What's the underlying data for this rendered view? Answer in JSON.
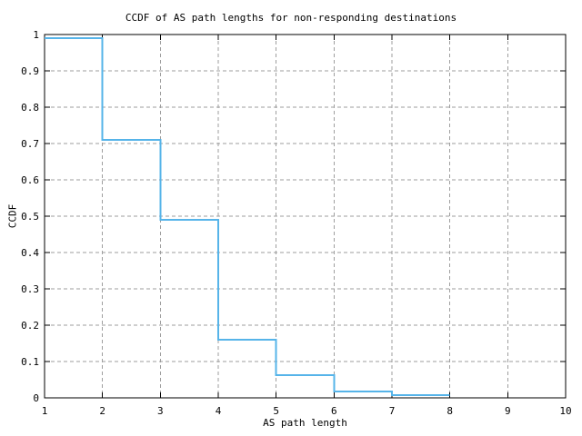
{
  "chart_data": {
    "type": "line",
    "style": "step-ccdf-staircase",
    "title": "CCDF of AS path lengths for non-responding destinations",
    "xlabel": "AS path length",
    "ylabel": "CCDF",
    "xlim": [
      1,
      10
    ],
    "ylim": [
      0,
      1
    ],
    "xticks": [
      1,
      2,
      3,
      4,
      5,
      6,
      7,
      8,
      9,
      10
    ],
    "xtick_labels": [
      "1",
      "2",
      "3",
      "4",
      "5",
      "6",
      "7",
      "8",
      "9",
      "10"
    ],
    "yticks": [
      0,
      0.1,
      0.2,
      0.3,
      0.4,
      0.5,
      0.6,
      0.7,
      0.8,
      0.9,
      1
    ],
    "ytick_labels": [
      "0",
      "0.1",
      "0.2",
      "0.3",
      "0.4",
      "0.5",
      "0.6",
      "0.7",
      "0.8",
      "0.9",
      "1"
    ],
    "grid": true,
    "legend": "none",
    "line_color": "#56b4e9",
    "series": [
      {
        "name": "CCDF of AS path length",
        "steps": [
          {
            "x_start": 1,
            "x_end": 2,
            "y": 0.99
          },
          {
            "x_start": 2,
            "x_end": 3,
            "y": 0.71
          },
          {
            "x_start": 3,
            "x_end": 4,
            "y": 0.49
          },
          {
            "x_start": 4,
            "x_end": 5,
            "y": 0.16
          },
          {
            "x_start": 5,
            "x_end": 6,
            "y": 0.063
          },
          {
            "x_start": 6,
            "x_end": 7,
            "y": 0.017
          },
          {
            "x_start": 7,
            "x_end": 8,
            "y": 0.008
          }
        ]
      }
    ]
  },
  "colors": {
    "background": "#ffffff",
    "grid": "#9e9e9e",
    "axis": "#000000",
    "text": "#000000",
    "line": "#56b4e9"
  }
}
